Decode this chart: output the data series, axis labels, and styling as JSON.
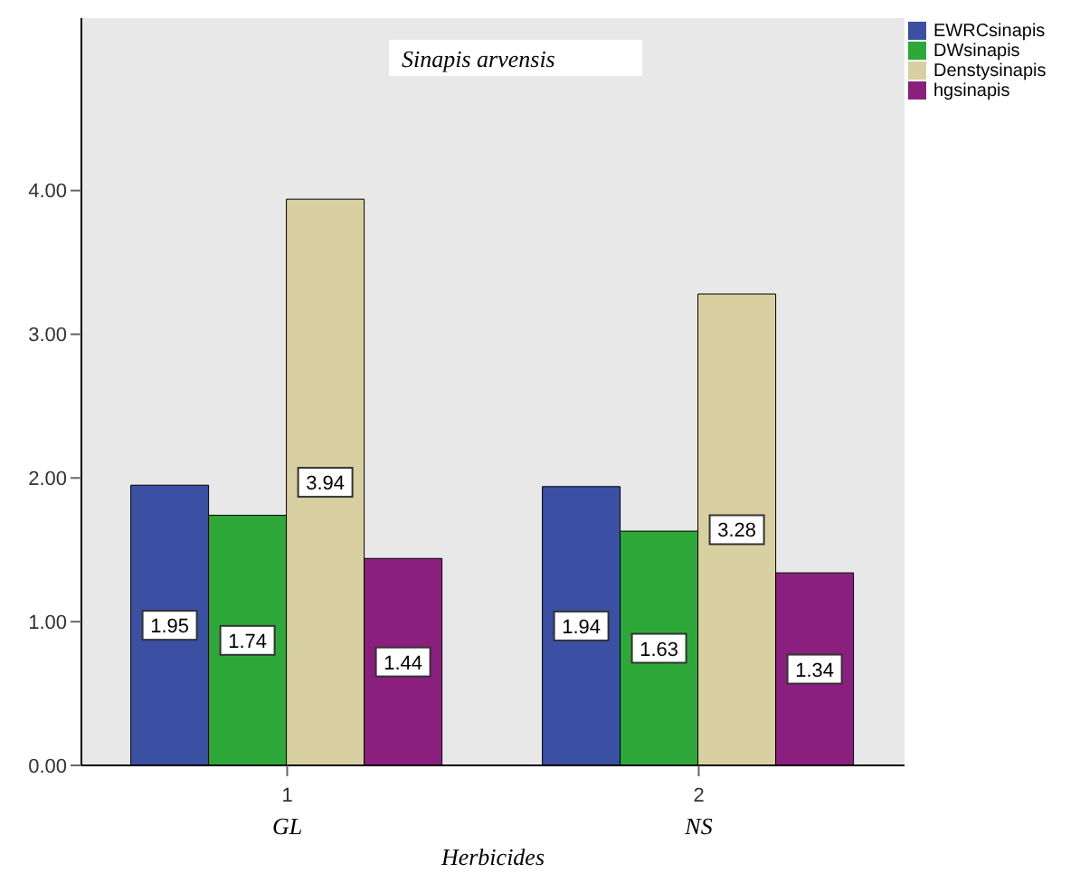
{
  "chart_data": {
    "type": "bar",
    "title": "Sinapis arvensis",
    "xlabel": "Herbicides",
    "categories": [
      "1",
      "2"
    ],
    "annotations": [
      "GL",
      "NS"
    ],
    "series": [
      {
        "name": "EWRCsinapis",
        "color": "#3b4fa3",
        "values": [
          1.95,
          1.94
        ]
      },
      {
        "name": "DWsinapis",
        "color": "#2fa83a",
        "values": [
          1.74,
          1.63
        ]
      },
      {
        "name": "Denstysinapis",
        "color": "#d8d0a0",
        "values": [
          3.94,
          3.28
        ]
      },
      {
        "name": "hgsinapis",
        "color": "#8a1f7e",
        "values": [
          1.44,
          1.34
        ]
      }
    ],
    "ylim": [
      0,
      5.2
    ],
    "yticks": [
      {
        "value": 0,
        "label": "0.00"
      },
      {
        "value": 1,
        "label": "1.00"
      },
      {
        "value": 2,
        "label": "2.00"
      },
      {
        "value": 3,
        "label": "3.00"
      },
      {
        "value": 4,
        "label": "4.00"
      }
    ],
    "data_labels": true,
    "grid": false,
    "legend": "top right"
  }
}
